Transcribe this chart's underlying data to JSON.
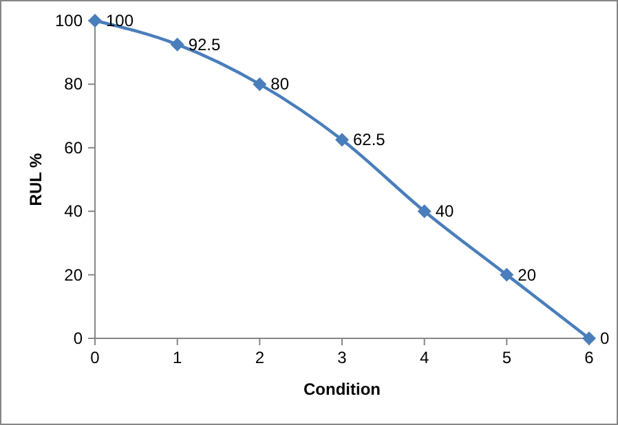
{
  "chart_data": {
    "type": "line",
    "xlabel": "Condition",
    "ylabel": "RUL %",
    "x": [
      0,
      1,
      2,
      3,
      4,
      5,
      6
    ],
    "series": [
      {
        "color": "#4a7ebb",
        "values": [
          100,
          92.5,
          80,
          62.5,
          40,
          20,
          0
        ]
      }
    ],
    "xlim": [
      0,
      6
    ],
    "xticks": [
      0,
      1,
      2,
      3,
      4,
      5,
      6
    ],
    "ylim": [
      0,
      100
    ],
    "yticks": [
      0,
      20,
      40,
      60,
      80,
      100
    ],
    "grid": false,
    "marker": "diamond",
    "line_style": "solid",
    "data_labels": true
  }
}
